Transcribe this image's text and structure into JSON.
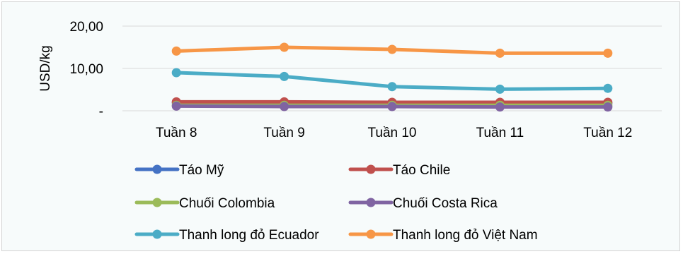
{
  "chart_data": {
    "type": "line",
    "categories": [
      "Tuần 8",
      "Tuần 9",
      "Tuần 10",
      "Tuần 11",
      "Tuần 12"
    ],
    "ylabel": "USD/kg",
    "ylim": [
      0,
      20
    ],
    "yticks": [
      {
        "value": 0,
        "label": "-"
      },
      {
        "value": 10,
        "label": "10,00"
      },
      {
        "value": 20,
        "label": "20,00"
      }
    ],
    "grid": true,
    "legend_position": "bottom",
    "series": [
      {
        "name": "Táo Mỹ",
        "color": "#4472c4",
        "values": [
          1.9,
          1.9,
          1.9,
          1.8,
          1.8
        ]
      },
      {
        "name": "Táo Chile",
        "color": "#c0504d",
        "values": [
          2.1,
          2.1,
          2.0,
          2.0,
          2.0
        ]
      },
      {
        "name": "Chuối Colombia",
        "color": "#9bbb59",
        "values": [
          1.3,
          1.3,
          1.3,
          1.3,
          1.3
        ]
      },
      {
        "name": "Chuối Costa Rica",
        "color": "#8064a2",
        "values": [
          1.1,
          1.0,
          1.0,
          0.9,
          0.9
        ]
      },
      {
        "name": "Thanh long đỏ Ecuador",
        "color": "#4bacc6",
        "values": [
          9.0,
          8.1,
          5.7,
          5.1,
          5.3
        ]
      },
      {
        "name": "Thanh long đỏ Việt Nam",
        "color": "#f79646",
        "values": [
          14.1,
          15.0,
          14.5,
          13.6,
          13.6
        ]
      }
    ]
  }
}
